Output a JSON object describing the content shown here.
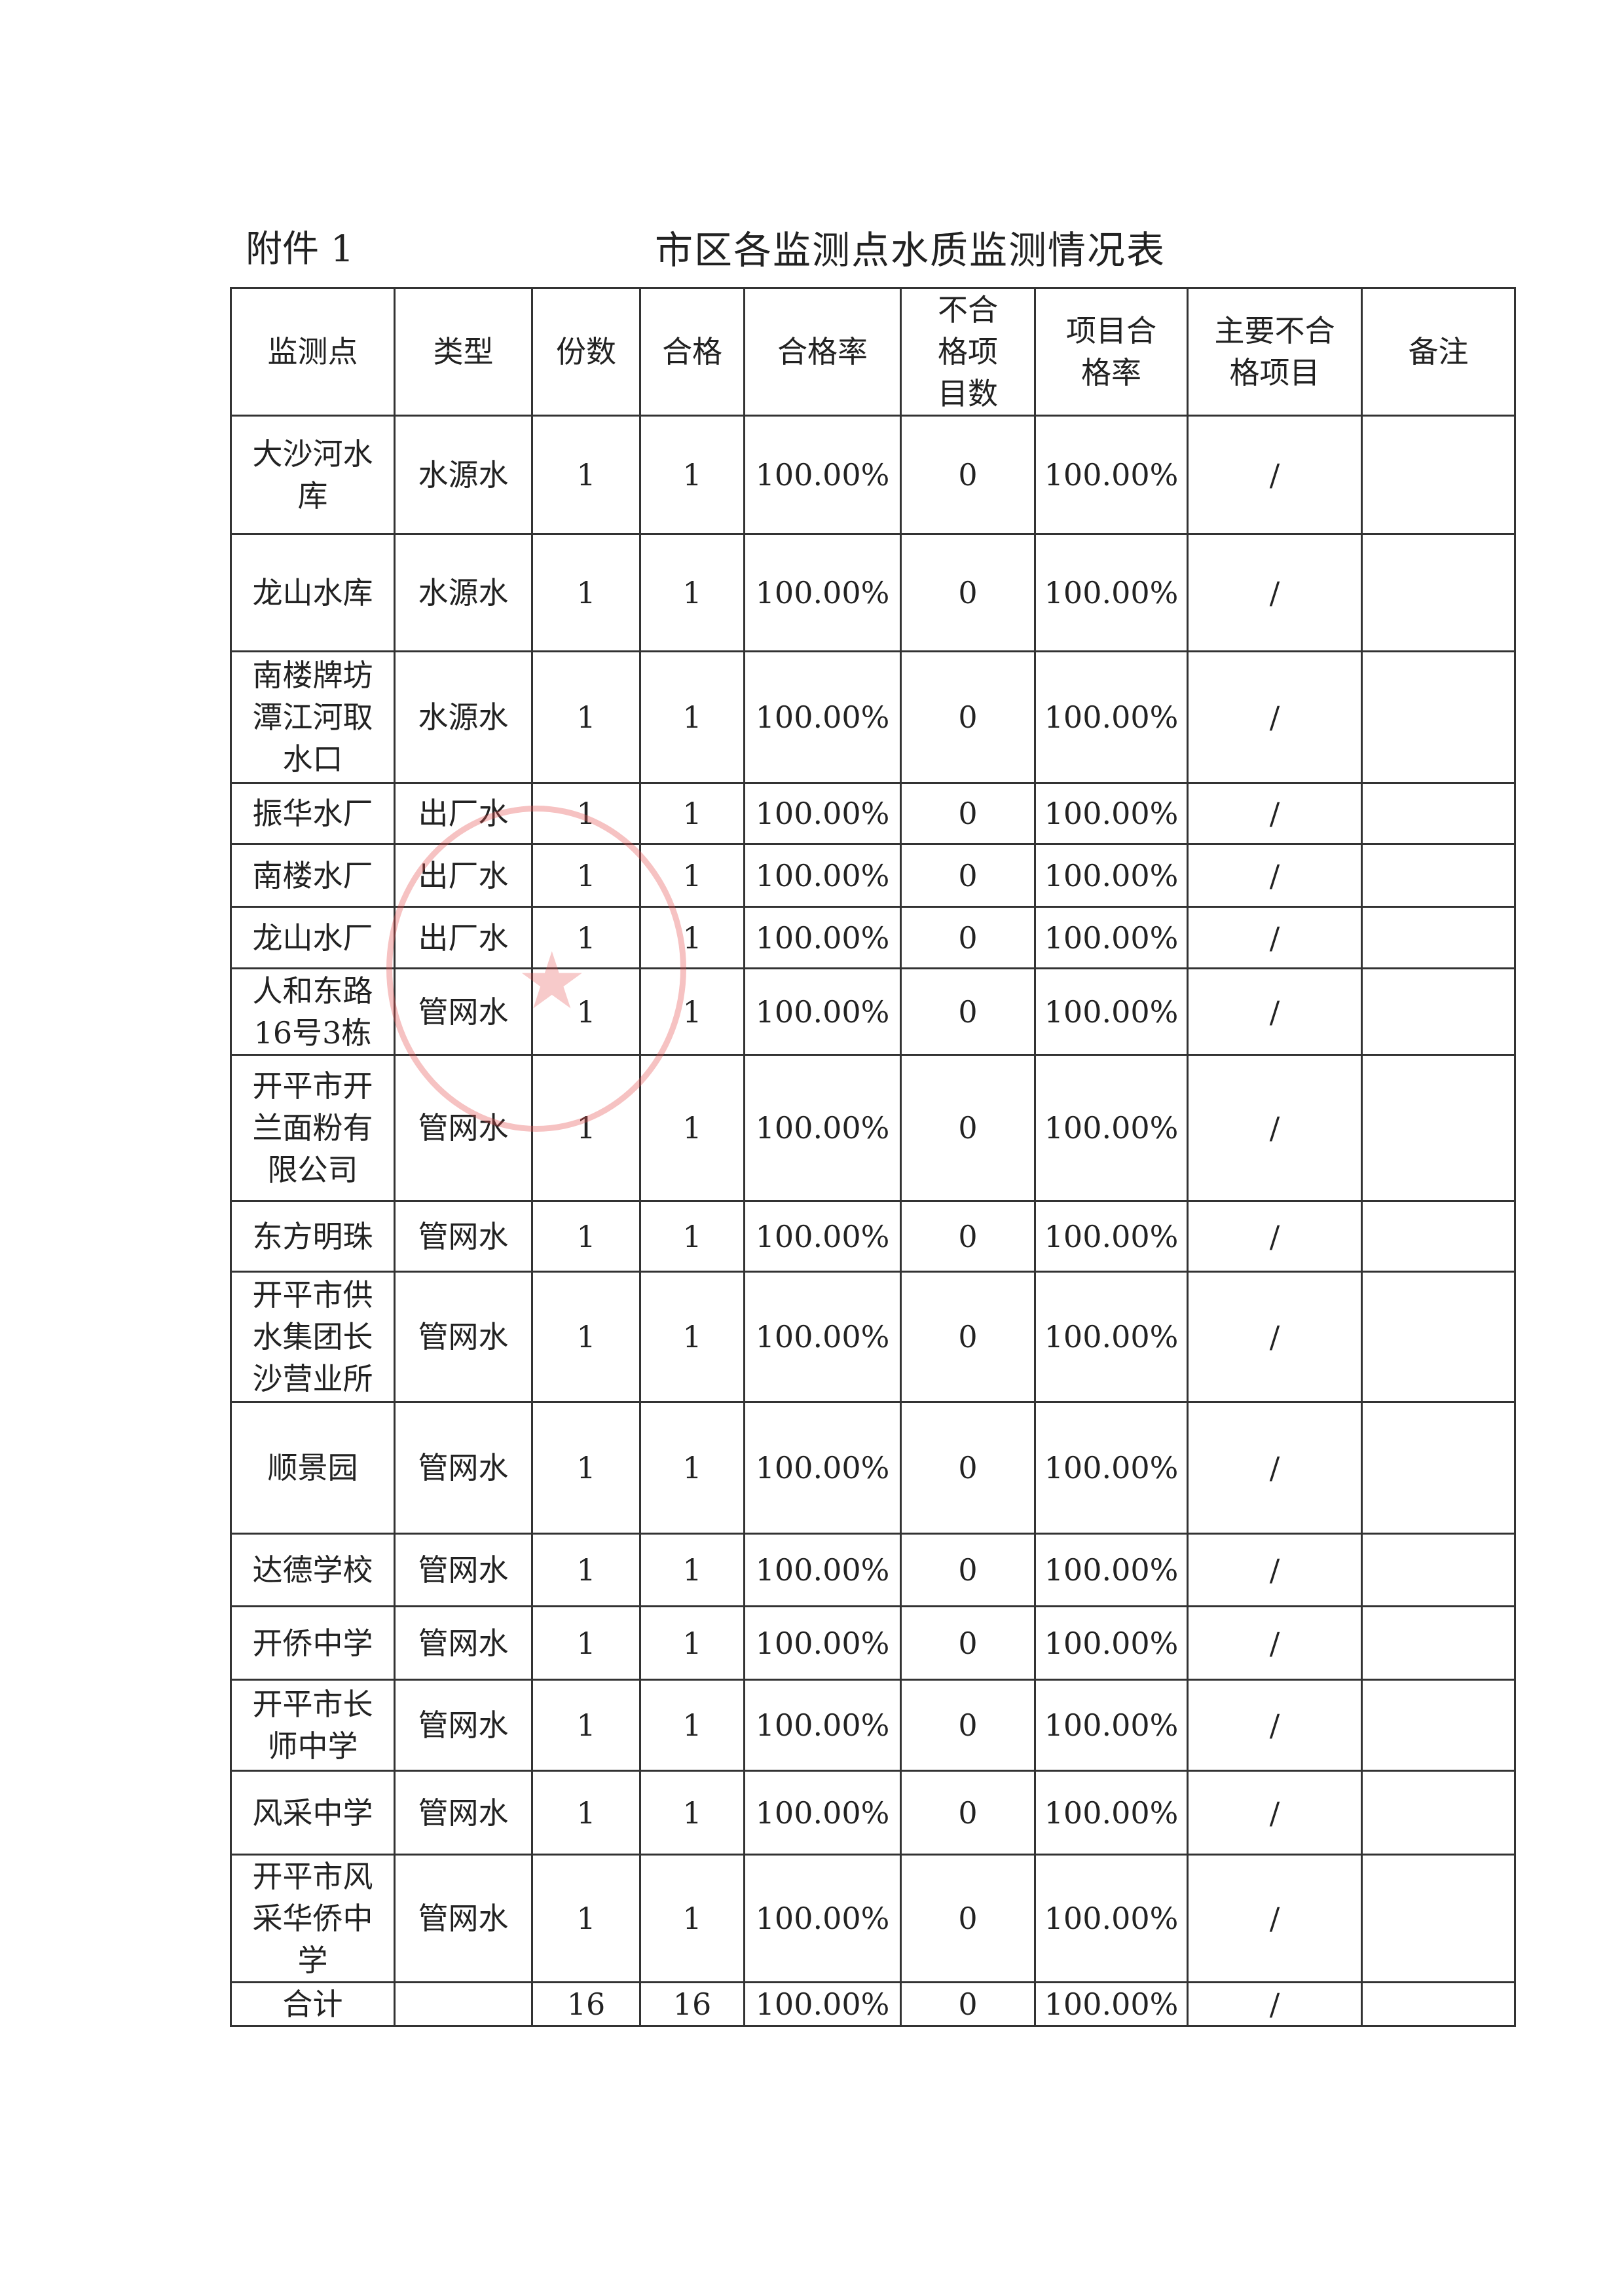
{
  "annex_label": "附件 1",
  "title": "市区各监测点水质监测情况表",
  "headers": [
    "监测点",
    "类型",
    "份数",
    "合格",
    "合格率",
    "不合格项目数",
    "项目合格率",
    "主要不合格项目",
    "备注"
  ],
  "rows": [
    [
      "大沙河水库",
      "水源水",
      "1",
      "1",
      "100.00%",
      "0",
      "100.00%",
      "/",
      ""
    ],
    [
      "龙山水库",
      "水源水",
      "1",
      "1",
      "100.00%",
      "0",
      "100.00%",
      "/",
      ""
    ],
    [
      "南楼牌坊潭江河取水口",
      "水源水",
      "1",
      "1",
      "100.00%",
      "0",
      "100.00%",
      "/",
      ""
    ],
    [
      "振华水厂",
      "出厂水",
      "1",
      "1",
      "100.00%",
      "0",
      "100.00%",
      "/",
      ""
    ],
    [
      "南楼水厂",
      "出厂水",
      "1",
      "1",
      "100.00%",
      "0",
      "100.00%",
      "/",
      ""
    ],
    [
      "龙山水厂",
      "出厂水",
      "1",
      "1",
      "100.00%",
      "0",
      "100.00%",
      "/",
      ""
    ],
    [
      "人和东路16号3栋",
      "管网水",
      "1",
      "1",
      "100.00%",
      "0",
      "100.00%",
      "/",
      ""
    ],
    [
      "开平市开兰面粉有限公司",
      "管网水",
      "1",
      "1",
      "100.00%",
      "0",
      "100.00%",
      "/",
      ""
    ],
    [
      "东方明珠",
      "管网水",
      "1",
      "1",
      "100.00%",
      "0",
      "100.00%",
      "/",
      ""
    ],
    [
      "开平市供水集团长沙营业所",
      "管网水",
      "1",
      "1",
      "100.00%",
      "0",
      "100.00%",
      "/",
      ""
    ],
    [
      "顺景园",
      "管网水",
      "1",
      "1",
      "100.00%",
      "0",
      "100.00%",
      "/",
      ""
    ],
    [
      "达德学校",
      "管网水",
      "1",
      "1",
      "100.00%",
      "0",
      "100.00%",
      "/",
      ""
    ],
    [
      "开侨中学",
      "管网水",
      "1",
      "1",
      "100.00%",
      "0",
      "100.00%",
      "/",
      ""
    ],
    [
      "开平市长师中学",
      "管网水",
      "1",
      "1",
      "100.00%",
      "0",
      "100.00%",
      "/",
      ""
    ],
    [
      "风采中学",
      "管网水",
      "1",
      "1",
      "100.00%",
      "0",
      "100.00%",
      "/",
      ""
    ],
    [
      "开平市风采华侨中学",
      "管网水",
      "1",
      "1",
      "100.00%",
      "0",
      "100.00%",
      "/",
      ""
    ]
  ],
  "total": [
    "合计",
    "",
    "16",
    "16",
    "100.00%",
    "0",
    "100.00%",
    "/",
    ""
  ],
  "colors": {
    "stamp": "#e65050"
  }
}
